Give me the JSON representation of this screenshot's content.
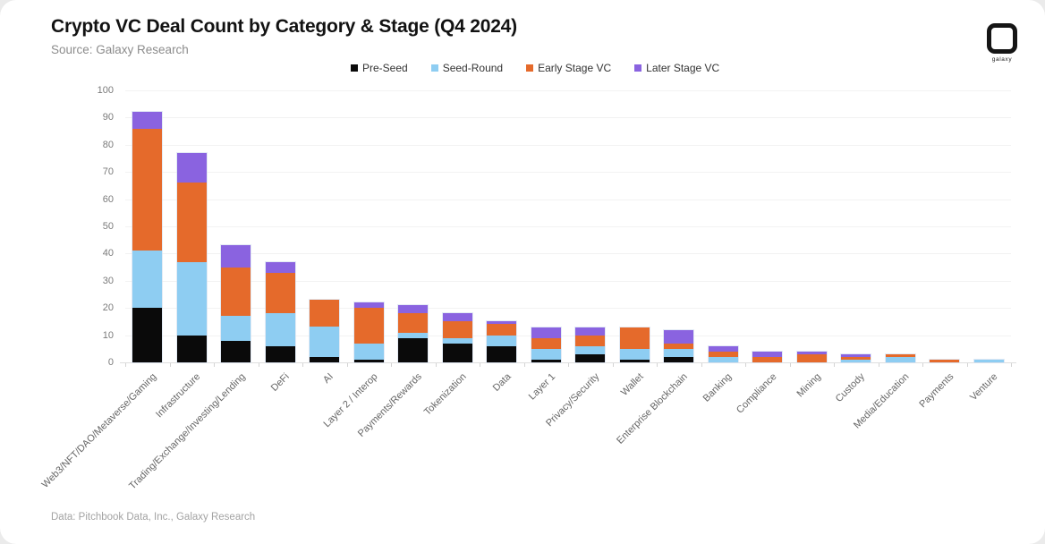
{
  "header": {
    "title": "Crypto VC Deal Count by Category & Stage (Q4 2024)",
    "subtitle": "Source: Galaxy Research",
    "logo_text": "galaxy"
  },
  "footer": {
    "text": "Data: Pitchbook Data, Inc., Galaxy Research"
  },
  "chart_data": {
    "type": "bar",
    "stacked": true,
    "title": "Crypto VC Deal Count by Category & Stage (Q4 2024)",
    "ylim": [
      0,
      100
    ],
    "ytick_step": 10,
    "grid": true,
    "legend_position": "top",
    "categories": [
      "Web3/NFT/DAO/Metaverse/Gaming",
      "Infrastructure",
      "Trading/Exchange/Investing/Lending",
      "DeFi",
      "AI",
      "Layer 2 / Interop",
      "Payments/Rewards",
      "Tokenization",
      "Data",
      "Layer 1",
      "Privacy/Security",
      "Wallet",
      "Enterprise Blockchain",
      "Banking",
      "Compliance",
      "Mining",
      "Custody",
      "Media/Education",
      "Payments",
      "Venture"
    ],
    "series": [
      {
        "name": "Pre-Seed",
        "color": "#0a0a0a",
        "values": [
          20,
          10,
          8,
          6,
          2,
          1,
          9,
          7,
          6,
          1,
          3,
          1,
          2,
          0,
          0,
          0,
          0,
          0,
          0,
          0
        ]
      },
      {
        "name": "Seed-Round",
        "color": "#8ecdf2",
        "values": [
          21,
          27,
          9,
          12,
          11,
          6,
          2,
          2,
          4,
          4,
          3,
          4,
          3,
          2,
          0,
          0,
          1,
          2,
          0,
          1
        ]
      },
      {
        "name": "Early Stage VC",
        "color": "#e56a2b",
        "values": [
          45,
          29,
          18,
          15,
          10,
          13,
          7,
          6,
          4,
          4,
          4,
          8,
          2,
          2,
          2,
          3,
          1,
          1,
          1,
          0
        ]
      },
      {
        "name": "Later Stage VC",
        "color": "#8a63e0",
        "values": [
          6,
          11,
          8,
          4,
          0,
          2,
          3,
          3,
          1,
          4,
          3,
          0,
          5,
          2,
          2,
          1,
          1,
          0,
          0,
          0
        ]
      }
    ],
    "totals": [
      92,
      77,
      43,
      37,
      23,
      22,
      21,
      18,
      15,
      13,
      13,
      13,
      12,
      6,
      4,
      4,
      3,
      3,
      1,
      1
    ]
  }
}
